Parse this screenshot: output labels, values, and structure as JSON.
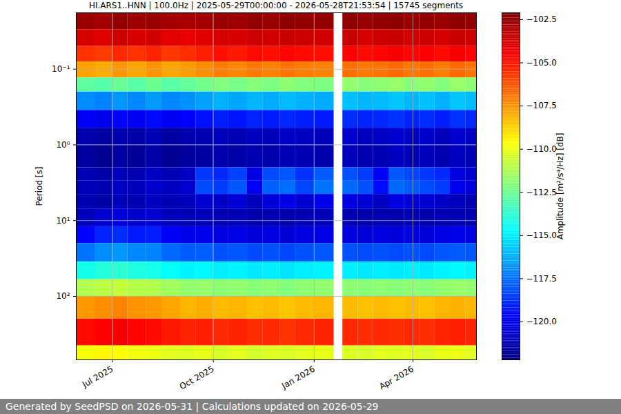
{
  "chart_data": {
    "type": "heatmap",
    "title": "HI.ARS1..HNN | 100.0Hz | 2025-05-29T00:00:00 - 2026-05-28T21:53:54 | 15745 segments",
    "caption": "Generated by SeedPSD on 2026-05-31 | Calculations updated on 2026-05-29",
    "ylabel": "Period [s]",
    "log": "y",
    "grid": true,
    "color": "jet",
    "xlim": [
      "2025-05-29T00:00:00",
      "2026-05-28T21:53:54"
    ],
    "xticks": [
      {
        "value": "2025-07-01",
        "label": "Jul 2025"
      },
      {
        "value": "2025-10-01",
        "label": "Oct 2025"
      },
      {
        "value": "2026-01-01",
        "label": "Jan 2026"
      },
      {
        "value": "2026-04-01",
        "label": "Apr 2026"
      }
    ],
    "ylim": [
      0.018,
      690
    ],
    "yticks": [
      {
        "value": 0.1,
        "label": "10⁻¹"
      },
      {
        "value": 1,
        "label": "10⁰"
      },
      {
        "value": 10,
        "label": "10¹"
      },
      {
        "value": 100,
        "label": "10²"
      }
    ],
    "x": [
      "2025-05-29",
      "2025-06-15",
      "2025-07-01",
      "2025-07-15",
      "2025-08-01",
      "2025-08-15",
      "2025-09-01",
      "2025-09-15",
      "2025-10-01",
      "2025-10-15",
      "2025-11-01",
      "2025-11-15",
      "2025-12-01",
      "2025-12-15",
      "2026-01-01",
      "2026-01-19",
      "2026-01-27",
      "2026-02-10",
      "2026-02-24",
      "2026-03-10",
      "2026-03-24",
      "2026-04-07",
      "2026-04-21",
      "2026-05-05",
      "2026-05-19"
    ],
    "y": [
      0.018,
      0.03,
      0.05,
      0.08,
      0.13,
      0.2,
      0.35,
      0.6,
      1,
      2,
      3,
      4.5,
      7,
      12,
      20,
      35,
      60,
      100,
      200,
      450
    ],
    "values": [
      [
        -102.6,
        -102.8,
        -102.5,
        -102.7,
        -102.6,
        -102.8,
        -102.9,
        -102.8,
        -102.6,
        -102.7,
        -102.5,
        -102.6,
        -102.4,
        -102.5,
        -102.5,
        null,
        -102.4,
        -102.6,
        -102.5,
        -102.4,
        -102.6,
        -102.5,
        -102.6,
        -102.4,
        -102.5
      ],
      [
        -103.8,
        -104.0,
        -103.6,
        -103.9,
        -103.7,
        -104.1,
        -104.2,
        -104.0,
        -103.8,
        -103.9,
        -103.6,
        -103.7,
        -103.5,
        -103.6,
        -103.7,
        null,
        -103.5,
        -103.8,
        -103.6,
        -103.5,
        -103.7,
        -103.6,
        -103.8,
        -103.5,
        -103.6
      ],
      [
        -105.6,
        -105.8,
        -105.4,
        -105.6,
        -105.3,
        -105.7,
        -105.5,
        -105.2,
        -104.9,
        -105.1,
        -104.8,
        -104.9,
        -104.7,
        -104.8,
        -104.9,
        null,
        -104.6,
        -104.8,
        -104.7,
        -104.5,
        -104.7,
        -104.6,
        -104.8,
        -104.5,
        -104.7
      ],
      [
        -107.8,
        -108.0,
        -107.6,
        -107.9,
        -107.5,
        -107.9,
        -107.7,
        -107.4,
        -107.1,
        -107.3,
        -107.0,
        -107.2,
        -106.9,
        -107.1,
        -107.2,
        null,
        -106.8,
        -107.0,
        -106.9,
        -106.7,
        -107.0,
        -106.8,
        -107.1,
        -106.7,
        -106.9
      ],
      [
        -112.8,
        -113.0,
        -112.6,
        -112.9,
        -112.5,
        -112.9,
        -112.7,
        -112.4,
        -112.1,
        -112.3,
        -112.0,
        -112.2,
        -111.9,
        -112.1,
        -112.2,
        null,
        -111.8,
        -112.0,
        -111.9,
        -111.7,
        -112.0,
        -111.8,
        -112.1,
        -111.7,
        -111.9
      ],
      [
        -116.9,
        -117.1,
        -116.7,
        -117.0,
        -116.6,
        -117.0,
        -116.8,
        -116.5,
        -116.2,
        -116.4,
        -116.1,
        -116.3,
        -116.0,
        -116.2,
        -116.3,
        null,
        -115.9,
        -116.1,
        -116.0,
        -115.8,
        -116.1,
        -115.9,
        -116.2,
        -115.8,
        -116.0
      ],
      [
        -119.8,
        -120.0,
        -119.6,
        -119.9,
        -119.5,
        -119.9,
        -119.7,
        -119.4,
        -119.1,
        -119.3,
        -119.0,
        -119.2,
        -118.9,
        -119.1,
        -119.2,
        null,
        -118.8,
        -119.0,
        -118.9,
        -118.7,
        -119.0,
        -118.8,
        -119.1,
        -118.7,
        -118.9
      ],
      [
        -121.3,
        -121.5,
        -121.2,
        -121.4,
        -121.1,
        -121.5,
        -121.3,
        -121.2,
        -121.0,
        -121.1,
        -120.9,
        -121.0,
        -120.8,
        -120.9,
        -121.0,
        null,
        -120.7,
        -120.9,
        -120.8,
        -120.6,
        -120.9,
        -120.7,
        -121.0,
        -120.6,
        -120.8
      ],
      [
        -121.6,
        -121.8,
        -121.5,
        -121.7,
        -121.4,
        -121.8,
        -121.6,
        -121.5,
        -121.3,
        -121.4,
        -121.2,
        -121.3,
        -121.1,
        -121.2,
        -121.3,
        null,
        -121.0,
        -121.2,
        -121.1,
        -120.9,
        -121.2,
        -121.0,
        -121.3,
        -120.9,
        -121.1
      ],
      [
        -121.2,
        -121.4,
        -121.0,
        -121.2,
        -120.9,
        -121.1,
        -120.8,
        -118.6,
        -118.9,
        -118.4,
        -120.2,
        -118.2,
        -118.0,
        -118.7,
        -117.9,
        null,
        -118.1,
        -118.5,
        -119.8,
        -118.0,
        -118.3,
        -118.6,
        -118.9,
        -120.3,
        -120.6
      ],
      [
        -121.0,
        -121.2,
        -120.8,
        -121.0,
        -120.7,
        -120.9,
        -120.6,
        -118.2,
        -118.5,
        -118.0,
        -119.9,
        -117.8,
        -117.5,
        -118.3,
        -117.4,
        null,
        -117.6,
        -118.1,
        -119.5,
        -117.6,
        -117.9,
        -118.2,
        -118.5,
        -120.0,
        -120.3
      ],
      [
        -121.2,
        -121.4,
        -121.0,
        -121.2,
        -120.9,
        -121.1,
        -121.0,
        -120.6,
        -120.8,
        -120.5,
        -121.0,
        -120.4,
        -120.2,
        -120.6,
        -120.1,
        null,
        -120.3,
        -120.5,
        -120.9,
        -120.3,
        -120.5,
        -120.6,
        -120.8,
        -121.0,
        -121.1
      ],
      [
        -121.0,
        -120.6,
        -120.4,
        -120.7,
        -120.6,
        -121.0,
        -121.1,
        -121.0,
        -121.2,
        -121.1,
        -121.3,
        -121.2,
        -121.3,
        -121.2,
        -121.1,
        null,
        -121.2,
        -121.3,
        -121.2,
        -121.3,
        -121.2,
        -121.3,
        -121.2,
        -121.1,
        -121.2
      ],
      [
        -119.6,
        -119.0,
        -118.8,
        -119.2,
        -119.1,
        -119.8,
        -120.1,
        -120.0,
        -120.3,
        -120.2,
        -120.4,
        -120.3,
        -120.5,
        -120.3,
        -120.2,
        null,
        -120.3,
        -120.4,
        -120.3,
        -120.4,
        -120.3,
        -120.4,
        -120.2,
        -120.1,
        -120.2
      ],
      [
        -117.4,
        -116.9,
        -116.7,
        -117.0,
        -117.1,
        -117.6,
        -117.9,
        -117.8,
        -118.1,
        -118.0,
        -118.2,
        -118.1,
        -118.3,
        -118.1,
        -118.0,
        null,
        -118.1,
        -118.2,
        -118.1,
        -118.2,
        -118.1,
        -118.2,
        -118.0,
        -117.9,
        -118.0
      ],
      [
        -114.3,
        -114.0,
        -113.8,
        -114.1,
        -114.2,
        -114.6,
        -114.9,
        -114.8,
        -115.0,
        -114.9,
        -115.1,
        -115.0,
        -115.2,
        -115.0,
        -114.9,
        null,
        -115.0,
        -115.1,
        -115.0,
        -115.1,
        -115.0,
        -115.1,
        -114.9,
        -114.8,
        -114.9
      ],
      [
        -111.2,
        -111.0,
        -110.8,
        -111.1,
        -111.2,
        -111.5,
        -111.8,
        -111.7,
        -111.9,
        -111.8,
        -112.0,
        -111.9,
        -112.1,
        -111.9,
        -111.8,
        null,
        -111.9,
        -112.0,
        -111.9,
        -112.0,
        -111.9,
        -112.0,
        -111.8,
        -111.7,
        -111.8
      ],
      [
        -107.6,
        -107.4,
        -107.2,
        -107.5,
        -107.6,
        -107.9,
        -108.2,
        -108.0,
        -108.3,
        -108.2,
        -108.4,
        -108.3,
        -108.5,
        -108.3,
        -108.2,
        null,
        -108.3,
        -108.4,
        -108.3,
        -108.4,
        -108.3,
        -108.4,
        -108.2,
        -108.1,
        -108.2
      ],
      [
        -104.8,
        -104.6,
        -104.5,
        -104.7,
        -104.8,
        -105.1,
        -105.3,
        -105.2,
        -105.4,
        -105.3,
        -105.5,
        -105.4,
        -105.6,
        -105.4,
        -105.3,
        null,
        -105.4,
        -105.5,
        -105.4,
        -105.5,
        -105.4,
        -105.5,
        -105.3,
        -105.2,
        -105.3
      ],
      [
        -109.8,
        -109.5,
        -109.6,
        -109.9,
        -110.0,
        -110.2,
        -110.3,
        -110.1,
        -110.4,
        -110.2,
        -110.5,
        -110.3,
        -110.4,
        -110.2,
        -110.1,
        null,
        -110.3,
        -110.4,
        -110.2,
        -110.3,
        -110.2,
        -110.4,
        -110.1,
        -110.0,
        -110.2
      ]
    ],
    "colorbar": {
      "label": "Amplitude [m²/s⁴/Hz] [dB]",
      "range": [
        -122.2,
        -102.1
      ],
      "ticks": [
        {
          "value": -120,
          "label": "−120.0"
        },
        {
          "value": -117.5,
          "label": "−117.5"
        },
        {
          "value": -115,
          "label": "−115.0"
        },
        {
          "value": -112.5,
          "label": "−112.5"
        },
        {
          "value": -110,
          "label": "−110.0"
        },
        {
          "value": -107.5,
          "label": "−107.5"
        },
        {
          "value": -105,
          "label": "−105.0"
        },
        {
          "value": -102.5,
          "label": "−102.5"
        }
      ]
    }
  }
}
